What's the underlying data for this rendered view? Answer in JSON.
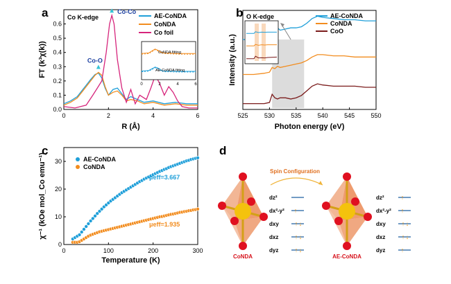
{
  "panels": {
    "a": "a",
    "b": "b",
    "c": "c",
    "d": "d"
  },
  "chart_data": [
    {
      "type": "line",
      "panel": "a",
      "title": "Co K-edge",
      "xlabel": "R (Å)",
      "ylabel": "FT (k³χ(k))",
      "xlim": [
        0,
        6
      ],
      "ylim": [
        0,
        0.7
      ],
      "xticks": [
        0,
        2,
        4,
        6
      ],
      "yticks": [
        0.0,
        0.1,
        0.2,
        0.3,
        0.4,
        0.5,
        0.6
      ],
      "legend_position": "top-right",
      "series": [
        {
          "name": "AE-CoNDA",
          "color": "#1f9fd9",
          "x": [
            0,
            0.3,
            0.6,
            0.9,
            1.2,
            1.4,
            1.55,
            1.7,
            1.85,
            2.0,
            2.2,
            2.4,
            2.6,
            2.8,
            3.0,
            3.3,
            3.6,
            4.0,
            4.5,
            5.0,
            5.5,
            6.0
          ],
          "y": [
            0.04,
            0.06,
            0.09,
            0.15,
            0.21,
            0.245,
            0.255,
            0.22,
            0.15,
            0.1,
            0.14,
            0.15,
            0.11,
            0.07,
            0.09,
            0.07,
            0.05,
            0.06,
            0.04,
            0.05,
            0.04,
            0.04
          ]
        },
        {
          "name": "CoNDA",
          "color": "#f28c1e",
          "x": [
            0,
            0.3,
            0.6,
            0.9,
            1.2,
            1.4,
            1.55,
            1.7,
            1.85,
            2.0,
            2.2,
            2.4,
            2.6,
            2.8,
            3.0,
            3.3,
            3.6,
            4.0,
            4.5,
            5.0,
            5.5,
            6.0
          ],
          "y": [
            0.03,
            0.05,
            0.08,
            0.14,
            0.2,
            0.24,
            0.26,
            0.24,
            0.16,
            0.1,
            0.12,
            0.13,
            0.1,
            0.06,
            0.07,
            0.06,
            0.04,
            0.05,
            0.03,
            0.04,
            0.03,
            0.03
          ]
        },
        {
          "name": "Co foil",
          "color": "#d6247b",
          "x": [
            0,
            0.5,
            1.0,
            1.3,
            1.5,
            1.7,
            1.9,
            2.05,
            2.15,
            2.25,
            2.4,
            2.6,
            2.8,
            3.0,
            3.2,
            3.4,
            3.7,
            3.9,
            4.1,
            4.3,
            4.5,
            4.7,
            4.9,
            5.1,
            5.3,
            5.6,
            6.0
          ],
          "y": [
            0.02,
            0.01,
            0.03,
            0.1,
            0.15,
            0.2,
            0.4,
            0.6,
            0.66,
            0.6,
            0.35,
            0.15,
            0.05,
            0.14,
            0.04,
            0.1,
            0.07,
            0.15,
            0.24,
            0.18,
            0.1,
            0.16,
            0.12,
            0.06,
            0.02,
            0.01,
            0.01
          ]
        }
      ],
      "annotations": [
        "Co-Co",
        "Co-O"
      ],
      "inset": {
        "xlim": [
          0,
          6
        ],
        "xticks": [
          0,
          2,
          4,
          6
        ],
        "labels": [
          "CoNDA fitting",
          "AE-CoNDA fitting"
        ]
      }
    },
    {
      "type": "line",
      "panel": "b",
      "title": "O K-edge",
      "xlabel": "Photon energy (eV)",
      "ylabel": "Intensity (a.u.)",
      "xlim": [
        525,
        550
      ],
      "xticks": [
        525,
        530,
        535,
        540,
        545,
        550
      ],
      "highlight_range": [
        530.5,
        536.5
      ],
      "legend_position": "top-right",
      "series": [
        {
          "name": "AE-CoNDA",
          "color": "#1f9fd9",
          "x": [
            525,
            527,
            529,
            530,
            530.5,
            531,
            531.5,
            532,
            533,
            534,
            535,
            536,
            537,
            538,
            539,
            540,
            542,
            544,
            546,
            548,
            550
          ],
          "y": [
            0.6,
            0.6,
            0.61,
            0.62,
            0.7,
            0.66,
            0.7,
            0.68,
            0.69,
            0.7,
            0.7,
            0.71,
            0.74,
            0.78,
            0.8,
            0.79,
            0.78,
            0.77,
            0.77,
            0.76,
            0.76
          ]
        },
        {
          "name": "CoNDA",
          "color": "#f28c1e",
          "x": [
            525,
            527,
            529,
            530,
            530.5,
            531,
            531.5,
            532,
            533,
            534,
            535,
            536,
            537,
            538,
            539,
            540,
            542,
            544,
            546,
            548,
            550
          ],
          "y": [
            0.3,
            0.3,
            0.31,
            0.32,
            0.36,
            0.35,
            0.37,
            0.36,
            0.37,
            0.38,
            0.39,
            0.4,
            0.42,
            0.45,
            0.47,
            0.47,
            0.46,
            0.46,
            0.45,
            0.45,
            0.45
          ]
        },
        {
          "name": "CoO",
          "color": "#7a1a1a",
          "x": [
            525,
            527,
            529,
            530,
            530.5,
            531,
            531.5,
            532,
            533,
            534,
            535,
            536,
            537,
            538,
            539,
            540,
            542,
            544,
            546,
            548,
            550
          ],
          "y": [
            0.05,
            0.05,
            0.05,
            0.06,
            0.13,
            0.1,
            0.09,
            0.1,
            0.1,
            0.09,
            0.1,
            0.12,
            0.16,
            0.2,
            0.22,
            0.21,
            0.2,
            0.2,
            0.2,
            0.19,
            0.19
          ]
        }
      ]
    },
    {
      "type": "scatter",
      "panel": "c",
      "xlabel": "Temperature (K)",
      "ylabel": "χ⁻¹ (kOe mol_Co emu⁻¹)",
      "xlim": [
        0,
        300
      ],
      "ylim": [
        0,
        35
      ],
      "xticks": [
        0,
        100,
        200,
        300
      ],
      "yticks": [
        0,
        10,
        20,
        30
      ],
      "legend_position": "top-left",
      "series": [
        {
          "name": "AE-CoNDA",
          "color": "#1f9fd9",
          "x": [
            20,
            25,
            30,
            35,
            40,
            45,
            50,
            55,
            60,
            65,
            70,
            75,
            80,
            85,
            90,
            95,
            100,
            105,
            110,
            115,
            120,
            125,
            130,
            135,
            140,
            145,
            150,
            155,
            160,
            165,
            170,
            175,
            180,
            185,
            190,
            195,
            200,
            205,
            210,
            215,
            220,
            225,
            230,
            235,
            240,
            245,
            250,
            255,
            260,
            265,
            270,
            275,
            280,
            285,
            290,
            295,
            300
          ],
          "y": [
            2,
            2.5,
            3,
            3.5,
            4.5,
            5.5,
            6.5,
            7.5,
            8.5,
            9.4,
            10.3,
            11.2,
            12,
            12.8,
            13.6,
            14.3,
            15,
            15.7,
            16.3,
            16.9,
            17.5,
            18.1,
            18.7,
            19.2,
            19.7,
            20.2,
            20.7,
            21.2,
            21.7,
            22.2,
            22.7,
            23.1,
            23.6,
            24,
            24.4,
            24.8,
            25.2,
            25.6,
            26,
            26.4,
            26.7,
            27.1,
            27.4,
            27.8,
            28.1,
            28.4,
            28.7,
            29,
            29.3,
            29.6,
            29.9,
            30.2,
            30.4,
            30.7,
            30.9,
            31.1,
            31.3
          ]
        },
        {
          "name": "CoNDA",
          "color": "#f28c1e",
          "x": [
            20,
            25,
            30,
            35,
            40,
            45,
            50,
            55,
            60,
            65,
            70,
            75,
            80,
            85,
            90,
            95,
            100,
            105,
            110,
            115,
            120,
            125,
            130,
            135,
            140,
            145,
            150,
            155,
            160,
            165,
            170,
            175,
            180,
            185,
            190,
            195,
            200,
            205,
            210,
            215,
            220,
            225,
            230,
            235,
            240,
            245,
            250,
            255,
            260,
            265,
            270,
            275,
            280,
            285,
            290,
            295,
            300
          ],
          "y": [
            0.8,
            0.8,
            0.8,
            1,
            1.5,
            2,
            2.5,
            3,
            3.4,
            3.7,
            4,
            4.3,
            4.6,
            4.8,
            5,
            5.2,
            5.4,
            5.6,
            5.8,
            6,
            6.2,
            6.4,
            6.6,
            6.8,
            7,
            7.2,
            7.4,
            7.6,
            7.8,
            8,
            8.2,
            8.4,
            8.6,
            8.8,
            9,
            9.2,
            9.4,
            9.6,
            9.8,
            10,
            10.1,
            10.3,
            10.5,
            10.7,
            10.9,
            11,
            11.2,
            11.4,
            11.6,
            11.7,
            11.9,
            12,
            12.2,
            12.3,
            12.5,
            12.6,
            12.8
          ]
        }
      ],
      "annotations": [
        "μeff=3.667",
        "μeff=1.935"
      ]
    }
  ],
  "diagram": {
    "arrow_label": "Spin Configuration",
    "left_label": "CoNDA",
    "right_label": "AE-CoNDA",
    "orbitals": [
      "dz²",
      "dx²-y²",
      "dxy",
      "dxz",
      "dyz"
    ],
    "left_electrons": [
      0,
      1,
      2,
      2,
      2
    ],
    "right_electrons": [
      1,
      1,
      2,
      2,
      1
    ],
    "colors": {
      "arrow": "#f0b43a",
      "line": "#1f5fa0",
      "label": "#d6101a",
      "octahedron": "#e87a3e",
      "sphere_gold": "#f4c20d",
      "sphere_red": "#e01020"
    }
  }
}
